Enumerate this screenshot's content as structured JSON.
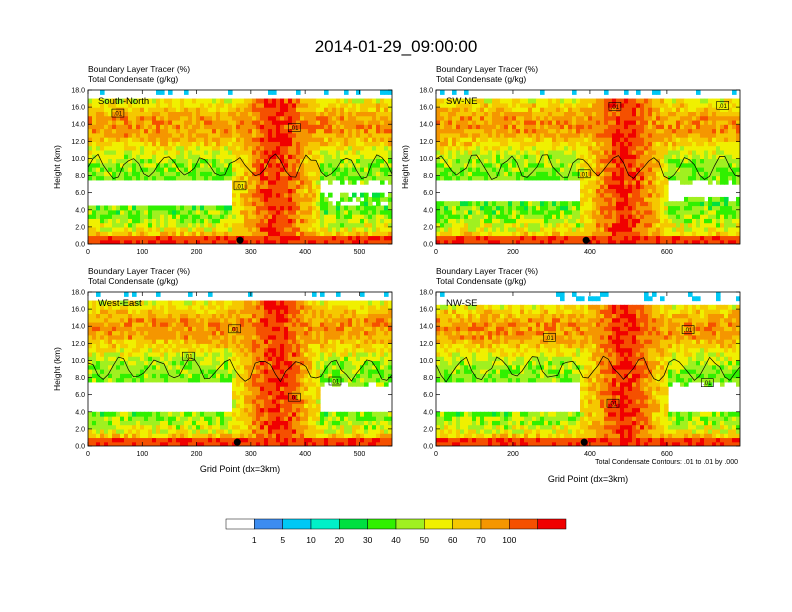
{
  "chart_data": {
    "type": "heatmap",
    "title": "2014-01-29_09:00:00",
    "colorbar": {
      "levels": [
        "1",
        "5",
        "10",
        "20",
        "30",
        "40",
        "50",
        "60",
        "70",
        "100"
      ],
      "colors": [
        "#ffffff",
        "#3c8cf0",
        "#00c8f5",
        "#00f0c8",
        "#00e040",
        "#30f000",
        "#a0f020",
        "#f0f000",
        "#f5c800",
        "#f59600",
        "#f55000",
        "#f00000"
      ]
    },
    "contour_color": "#000000",
    "footnote": "Total Condensate Contours: .01 to .01 by .000",
    "panels": [
      {
        "name": "South-North",
        "line1": "Boundary Layer Tracer   (%)",
        "line2": "Total Condensate   (g/kg)",
        "xlim": [
          0,
          560
        ],
        "xticks": [
          0,
          100,
          200,
          300,
          400,
          500
        ],
        "ylim": [
          0,
          18
        ],
        "yticks": [
          "0.0",
          "2.0",
          "4.0",
          "6.0",
          "8.0",
          "10.0",
          "12.0",
          "14.0",
          "16.0",
          "18.0"
        ],
        "ylabel": "Height (km)",
        "xlabel": "",
        "marker_x": 280,
        "contour_labels": [
          {
            "text": ".01",
            "x": 55,
            "y": 15.3
          },
          {
            "text": ".01",
            "x": 380,
            "y": 13.6
          },
          {
            "text": ".01",
            "x": 280,
            "y": 6.8
          }
        ],
        "upper_band": [
          7,
          16.8
        ],
        "upper_gap": [
          4.6,
          7.4
        ],
        "lower_band": [
          0.5,
          6.0
        ]
      },
      {
        "name": "SW-NE",
        "line1": "Boundary Layer Tracer   (%)",
        "line2": "Total Condensate   (g/kg)",
        "xlim": [
          0,
          790
        ],
        "xticks": [
          0,
          200,
          400,
          600
        ],
        "ylim": [
          0,
          18
        ],
        "yticks": [
          "0.0",
          "2.0",
          "4.0",
          "6.0",
          "8.0",
          "10.0",
          "12.0",
          "14.0",
          "16.0",
          "18.0"
        ],
        "ylabel": "Height (km)",
        "xlabel": "",
        "marker_x": 390,
        "contour_labels": [
          {
            "text": ".01",
            "x": 465,
            "y": 16.1
          },
          {
            "text": ".01",
            "x": 745,
            "y": 16.2
          },
          {
            "text": ".01",
            "x": 385,
            "y": 8.2
          }
        ],
        "upper_band": [
          7,
          17
        ],
        "upper_gap": [
          4.8,
          7.6
        ],
        "lower_band": [
          0.5,
          5.5
        ]
      },
      {
        "name": "West-East",
        "line1": "Boundary Layer Tracer   (%)",
        "line2": "Total Condensate   (g/kg)",
        "xlim": [
          0,
          560
        ],
        "xticks": [
          0,
          100,
          200,
          300,
          400,
          500
        ],
        "ylim": [
          0,
          18
        ],
        "yticks": [
          "0.0",
          "2.0",
          "4.0",
          "6.0",
          "8.0",
          "10.0",
          "12.0",
          "14.0",
          "16.0",
          "18.0"
        ],
        "ylabel": "Height (km)",
        "xlabel": "Grid Point (dx=3km)",
        "marker_x": 275,
        "contour_labels": [
          {
            "text": ".01",
            "x": 270,
            "y": 13.7
          },
          {
            "text": ".01",
            "x": 185,
            "y": 10.5
          },
          {
            "text": ".01",
            "x": 455,
            "y": 7.6
          },
          {
            "text": ".01",
            "x": 380,
            "y": 5.7
          }
        ],
        "upper_band": [
          7,
          16.8
        ],
        "upper_gap": [
          3.8,
          7.4
        ],
        "lower_band": [
          0.5,
          3.8
        ]
      },
      {
        "name": "NW-SE",
        "line1": "Boundary Layer Tracer   (%)",
        "line2": "Total Condensate   (g/kg)",
        "xlim": [
          0,
          790
        ],
        "xticks": [
          0,
          200,
          400,
          600
        ],
        "ylim": [
          0,
          18
        ],
        "yticks": [
          "0.0",
          "2.0",
          "4.0",
          "6.0",
          "8.0",
          "10.0",
          "12.0",
          "14.0",
          "16.0",
          "18.0"
        ],
        "ylabel": "",
        "xlabel": "Grid Point (dx=3km)",
        "marker_x": 385,
        "contour_labels": [
          {
            "text": ".01",
            "x": 295,
            "y": 12.7
          },
          {
            "text": ".01",
            "x": 655,
            "y": 13.6
          },
          {
            "text": ".01",
            "x": 705,
            "y": 7.4
          },
          {
            "text": ".01",
            "x": 460,
            "y": 5.0
          }
        ],
        "upper_band": [
          7,
          16.5
        ],
        "upper_gap": [
          4.0,
          7.6
        ],
        "lower_band": [
          0.5,
          4.0
        ]
      }
    ]
  }
}
